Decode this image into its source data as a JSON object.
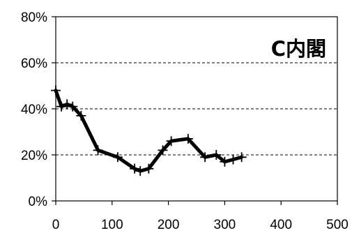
{
  "chart_data": {
    "type": "line",
    "title": "C内閣",
    "xlabel": "",
    "ylabel": "",
    "xlim": [
      0,
      500
    ],
    "ylim": [
      0,
      80
    ],
    "x_ticks": [
      0,
      100,
      200,
      300,
      400,
      500
    ],
    "x_tick_labels": [
      "0",
      "100",
      "200",
      "300",
      "400",
      "500"
    ],
    "y_ticks": [
      0,
      20,
      40,
      60,
      80
    ],
    "y_tick_labels": [
      "0%",
      "20%",
      "40%",
      "60%",
      "80%"
    ],
    "grid": "horizontal dashed",
    "legend": "none",
    "series": [
      {
        "x": [
          0,
          10,
          20,
          30,
          45,
          75,
          110,
          140,
          150,
          165,
          190,
          205,
          235,
          265,
          285,
          300,
          315,
          330
        ],
        "y": [
          48,
          41,
          42,
          41,
          37,
          22,
          19,
          14,
          13,
          14,
          22,
          26,
          27,
          19,
          20,
          17,
          18,
          19
        ],
        "color": "#000000",
        "marker": "plus"
      }
    ]
  }
}
